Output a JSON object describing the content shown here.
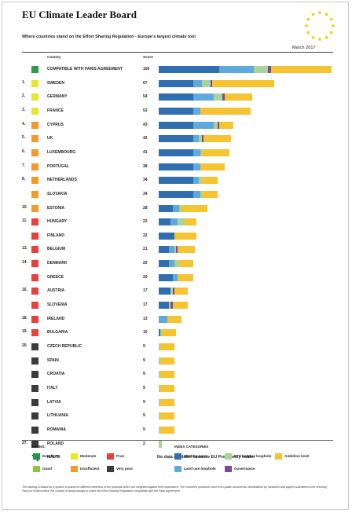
{
  "title": "EU Climate Leader Board",
  "subtitle": "Where countries stand on the Effort Sharing Regulation - Europe's largest climate tool",
  "date": "March 2017",
  "headers": {
    "country": "Country",
    "score": "Score"
  },
  "rating_colors": {
    "excellent": "#1f9a48",
    "moderate": "#e6e62a",
    "poor": "#e8403f",
    "good": "#8cc63f",
    "insufficient": "#f39a2b",
    "very_poor": "#3b3b3b",
    "paris": "#2e9a52"
  },
  "category_colors": {
    "starting_point": "#2f6fb0",
    "land_use_loophole": "#5fa9dc",
    "ets_surplus_loophole": "#a9d39a",
    "governance": "#7a4b9a",
    "ambition_level": "#f6c331"
  },
  "chart_data": {
    "type": "bar",
    "stacked": true,
    "orientation": "horizontal",
    "title": "EU Climate Leader Board",
    "subtitle": "Where countries stand on the Effort Sharing Regulation - Europe's largest climate tool",
    "xlim": [
      0,
      100
    ],
    "series_names": [
      "Starting point",
      "Land use loophole",
      "ETS surplus loophole",
      "Governance",
      "Ambition level"
    ],
    "rows": [
      {
        "rank": "",
        "country": "COMPATIBLE WITH PARIS AGREEMENT",
        "score": 100,
        "rating": "paris",
        "segments": [
          35,
          20,
          8,
          2,
          35
        ]
      },
      {
        "rank": "1.",
        "country": "SWEDEN",
        "score": 67,
        "rating": "moderate",
        "segments": [
          20,
          5,
          5,
          1,
          36
        ]
      },
      {
        "rank": "2.",
        "country": "GERMANY",
        "score": 54,
        "rating": "moderate",
        "segments": [
          20,
          12,
          5,
          1,
          16
        ]
      },
      {
        "rank": "3.",
        "country": "FRANCE",
        "score": 53,
        "rating": "moderate",
        "segments": [
          20,
          4,
          0,
          0,
          29
        ]
      },
      {
        "rank": "4.",
        "country": "CYPRUS",
        "score": 43,
        "rating": "insufficient",
        "segments": [
          20,
          12,
          2,
          1,
          8
        ]
      },
      {
        "rank": "5.",
        "country": "UK",
        "score": 42,
        "rating": "insufficient",
        "segments": [
          20,
          3,
          2,
          1,
          16
        ]
      },
      {
        "rank": "6.",
        "country": "LUXEMBOURG",
        "score": 41,
        "rating": "insufficient",
        "segments": [
          20,
          4,
          1,
          0,
          16
        ]
      },
      {
        "rank": "7.",
        "country": "PORTUGAL",
        "score": 38,
        "rating": "insufficient",
        "segments": [
          20,
          4,
          0,
          0,
          14
        ]
      },
      {
        "rank": "8.",
        "country": "NETHERLANDS",
        "score": 34,
        "rating": "insufficient",
        "segments": [
          20,
          3,
          2,
          0,
          9
        ]
      },
      {
        "rank": "",
        "country": "SLOVAKIA",
        "score": 34,
        "rating": "insufficient",
        "segments": [
          20,
          4,
          1,
          0,
          9
        ]
      },
      {
        "rank": "10.",
        "country": "ESTONIA",
        "score": 28,
        "rating": "insufficient",
        "segments": [
          8,
          4,
          1,
          0,
          15
        ]
      },
      {
        "rank": "11.",
        "country": "HUNGARY",
        "score": 22,
        "rating": "poor",
        "segments": [
          7,
          4,
          4,
          0,
          7
        ]
      },
      {
        "rank": "",
        "country": "FINLAND",
        "score": 22,
        "rating": "poor",
        "segments": [
          9,
          0,
          0,
          0,
          13
        ]
      },
      {
        "rank": "13.",
        "country": "BELGIUM",
        "score": 21,
        "rating": "poor",
        "segments": [
          6,
          3,
          1,
          1,
          10
        ]
      },
      {
        "rank": "14.",
        "country": "DENMARK",
        "score": 20,
        "rating": "poor",
        "segments": [
          6,
          3,
          3,
          0,
          8
        ]
      },
      {
        "rank": "",
        "country": "GREECE",
        "score": 20,
        "rating": "poor",
        "segments": [
          8,
          3,
          0,
          0,
          9
        ]
      },
      {
        "rank": "16.",
        "country": "AUSTRIA",
        "score": 17,
        "rating": "poor",
        "segments": [
          7,
          0,
          1,
          1,
          8
        ]
      },
      {
        "rank": "",
        "country": "SLOVENIA",
        "score": 17,
        "rating": "poor",
        "segments": [
          6,
          0,
          1,
          1,
          9
        ]
      },
      {
        "rank": "18.",
        "country": "IRELAND",
        "score": 13,
        "rating": "poor",
        "segments": [
          0,
          5,
          0,
          0,
          8
        ]
      },
      {
        "rank": "19.",
        "country": "BULGARIA",
        "score": 10,
        "rating": "poor",
        "segments": [
          1,
          0,
          1,
          0,
          8
        ]
      },
      {
        "rank": "20.",
        "country": "CZECH REPUBLIC",
        "score": 9,
        "rating": "very_poor",
        "segments": [
          0,
          0,
          1,
          0,
          8
        ]
      },
      {
        "rank": "",
        "country": "SPAIN",
        "score": 9,
        "rating": "very_poor",
        "segments": [
          0,
          0,
          1,
          0,
          8
        ]
      },
      {
        "rank": "",
        "country": "CROATIA",
        "score": 9,
        "rating": "very_poor",
        "segments": [
          0,
          0,
          1,
          0,
          8
        ]
      },
      {
        "rank": "",
        "country": "ITALY",
        "score": 9,
        "rating": "very_poor",
        "segments": [
          0,
          0,
          1,
          0,
          8
        ]
      },
      {
        "rank": "",
        "country": "LATVIA",
        "score": 9,
        "rating": "very_poor",
        "segments": [
          0,
          0,
          1,
          0,
          8
        ]
      },
      {
        "rank": "",
        "country": "LITHUANIA",
        "score": 9,
        "rating": "very_poor",
        "segments": [
          0,
          0,
          1,
          0,
          8
        ]
      },
      {
        "rank": "",
        "country": "ROMANIA",
        "score": 9,
        "rating": "very_poor",
        "segments": [
          0,
          0,
          1,
          0,
          8
        ]
      },
      {
        "rank": "27.",
        "country": "POLAND",
        "score": 2,
        "rating": "very_poor",
        "segments": [
          0,
          0,
          2,
          0,
          0
        ]
      },
      {
        "rank": "",
        "country": "MALTA",
        "score": "",
        "rating": "none",
        "segments": [],
        "note": "No data available because EU Presidency holder"
      }
    ]
  },
  "legend": {
    "rating_title": "RATING:",
    "ratings": [
      {
        "label": "Excellent",
        "key": "excellent"
      },
      {
        "label": "Moderate",
        "key": "moderate"
      },
      {
        "label": "Poor",
        "key": "poor"
      },
      {
        "label": "Good",
        "key": "good"
      },
      {
        "label": "Insufficient",
        "key": "insufficient"
      },
      {
        "label": "Very poor",
        "key": "very_poor"
      }
    ],
    "category_title": "INDEX CATEGORIES",
    "categories": [
      {
        "label": "Starting point",
        "key": "starting_point"
      },
      {
        "label": "ETS surplus loophole",
        "key": "ets_surplus_loophole"
      },
      {
        "label": "Ambition level",
        "key": "ambition_level"
      },
      {
        "label": "Land use loophole",
        "key": "land_use_loophole"
      },
      {
        "label": "Governance",
        "key": "governance"
      }
    ]
  },
  "footnote": "The ranking is based on a system of points for different elements of the proposal which are weighted against their importance. The countries' positions come from public documents, declarations by ministries and papers submitted to the Working Party on Environment. No country is doing enough to make the Effort Sharing Regulation compatible with the Paris Agreement."
}
